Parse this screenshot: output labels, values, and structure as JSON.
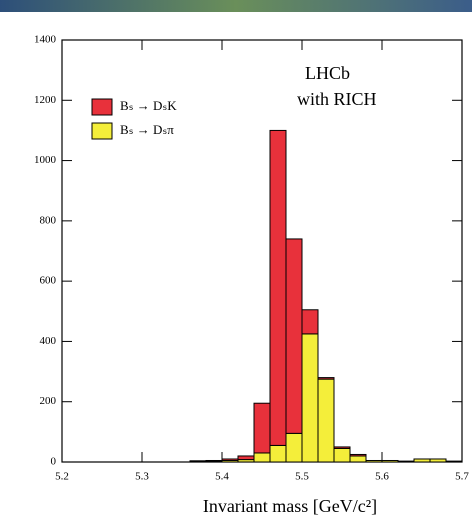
{
  "chart_data": {
    "type": "stacked-histogram",
    "x_label": "Invariant mass   [GeV/c²]",
    "annotations": [
      "LHCb",
      "with RICH"
    ],
    "bins": [
      5.2,
      5.22,
      5.24,
      5.26,
      5.28,
      5.3,
      5.32,
      5.34,
      5.36,
      5.38,
      5.4,
      5.42,
      5.44,
      5.46,
      5.48,
      5.5,
      5.52,
      5.54,
      5.56,
      5.58,
      5.6,
      5.62,
      5.64,
      5.66,
      5.68,
      5.7
    ],
    "series": [
      {
        "name": "Bₛ → Dₛπ",
        "color": "#f4ee3a",
        "values": [
          0,
          0,
          0,
          0,
          0,
          0,
          0,
          0,
          2,
          3,
          5,
          8,
          30,
          55,
          95,
          425,
          275,
          45,
          20,
          5,
          5,
          3,
          10,
          10,
          3
        ]
      },
      {
        "name": "Bₛ → DₛK",
        "color": "#e8313b",
        "values": [
          0,
          0,
          0,
          0,
          0,
          0,
          0,
          0,
          2,
          2,
          5,
          12,
          165,
          1045,
          645,
          80,
          5,
          5,
          5,
          0,
          0,
          0,
          0,
          0,
          0
        ]
      }
    ],
    "xlim": [
      5.2,
      5.7
    ],
    "xticks": [
      5.2,
      5.3,
      5.4,
      5.5,
      5.6,
      5.7
    ],
    "ylim": [
      0,
      1400
    ],
    "yticks": [
      0,
      200,
      400,
      600,
      800,
      1000,
      1200,
      1400
    ]
  }
}
